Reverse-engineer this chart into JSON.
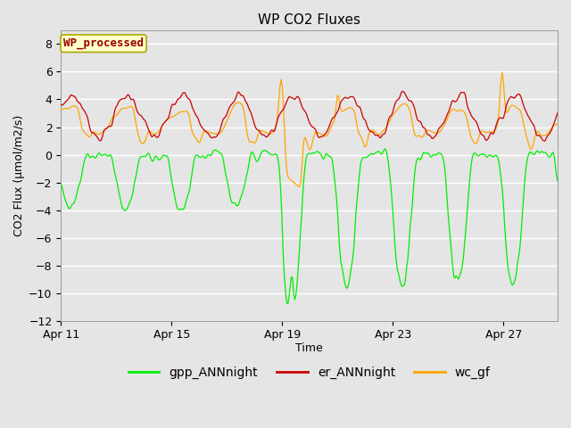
{
  "title": "WP CO2 Fluxes",
  "xlabel": "Time",
  "ylabel": "CO2 Flux (μmol/m2/s)",
  "ylim": [
    -12,
    9
  ],
  "yticks": [
    -12,
    -10,
    -8,
    -6,
    -4,
    -2,
    0,
    2,
    4,
    6,
    8
  ],
  "x_tick_labels": [
    "Apr 11",
    "Apr 15",
    "Apr 19",
    "Apr 23",
    "Apr 27"
  ],
  "x_tick_positions": [
    0,
    96,
    192,
    288,
    384
  ],
  "total_points": 432,
  "background_color": "#e5e5e5",
  "plot_bg_color": "#e5e5e5",
  "grid_color": "#ffffff",
  "color_gpp": "#00ee00",
  "color_er": "#cc0000",
  "color_wc": "#ffa500",
  "legend_label_gpp": "gpp_ANNnight",
  "legend_label_er": "er_ANNnight",
  "legend_label_wc": "wc_gf",
  "watermark_text": "WP_processed",
  "watermark_color": "#990000",
  "watermark_bg": "#ffffcc",
  "watermark_border": "#aaaa00",
  "title_fontsize": 11,
  "axis_label_fontsize": 9,
  "tick_fontsize": 9,
  "legend_fontsize": 10
}
